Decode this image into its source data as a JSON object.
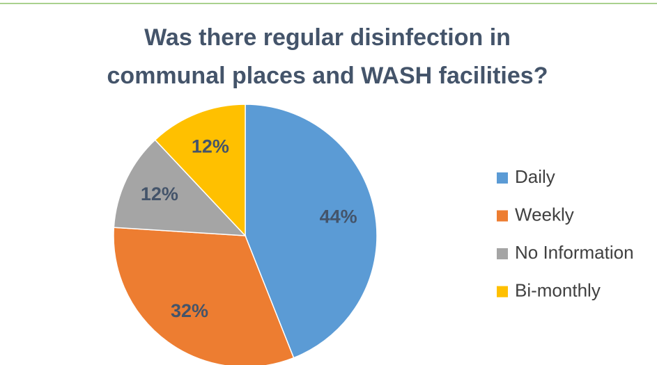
{
  "chart_data": {
    "type": "pie",
    "title": [
      "Was there regular disinfection in",
      "communal places and WASH facilities?"
    ],
    "categories": [
      "Daily",
      "Weekly",
      "No Information",
      "Bi-monthly"
    ],
    "values": [
      44,
      32,
      12,
      12
    ],
    "value_labels": [
      "44%",
      "32%",
      "12%",
      "12%"
    ],
    "colors": [
      "#5b9bd5",
      "#ed7d31",
      "#a5a5a5",
      "#ffc000"
    ],
    "legend": "right"
  }
}
